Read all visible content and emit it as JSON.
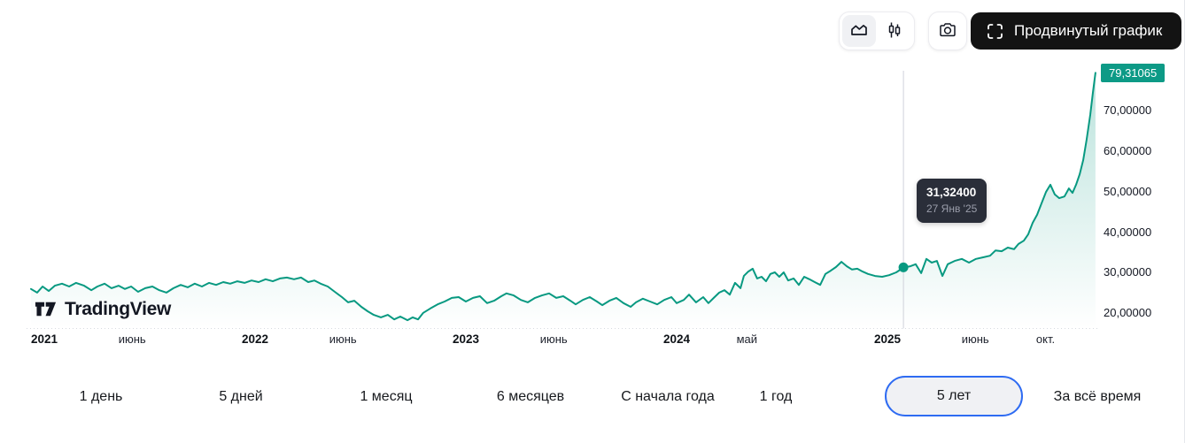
{
  "toolbar": {
    "advanced_label": "Продвинутый график",
    "icons": [
      "area-chart-icon",
      "candlestick-icon",
      "camera-icon",
      "fullscreen-brackets-icon"
    ]
  },
  "logo": {
    "text": "TradingView"
  },
  "tooltip": {
    "price": "31,32400",
    "date": "27 Янв '25"
  },
  "range_buttons": [
    {
      "label": "1 день",
      "selected": false
    },
    {
      "label": "5 дней",
      "selected": false
    },
    {
      "label": "1 месяц",
      "selected": false
    },
    {
      "label": "6 месяцев",
      "selected": false
    },
    {
      "label": "С начала года",
      "selected": false
    },
    {
      "label": "1 год",
      "selected": false
    },
    {
      "label": "5 лет",
      "selected": true
    },
    {
      "label": "За всё время",
      "selected": false
    }
  ],
  "colors": {
    "line": "#089981",
    "badge": "#0d9a86",
    "tooltip_bg": "#2a2e39",
    "selected_border": "#2e6bf2",
    "crosshair": "#cfd2da",
    "advanced_bg": "#131313"
  },
  "chart_data": {
    "type": "area",
    "title": "",
    "xlabel": "",
    "ylabel": "",
    "ylim": [
      17,
      81
    ],
    "x_range_years": [
      "2021",
      "2025"
    ],
    "grid": false,
    "legend": "none",
    "last_label": "79,31065",
    "last_value": 79.31065,
    "y_ticks": [
      {
        "label": "70,00000",
        "value": 70
      },
      {
        "label": "60,00000",
        "value": 60
      },
      {
        "label": "50,00000",
        "value": 50
      },
      {
        "label": "40,00000",
        "value": 40
      },
      {
        "label": "30,00000",
        "value": 30
      },
      {
        "label": "20,00000",
        "value": 20
      }
    ],
    "x_ticks": [
      {
        "label": "2021",
        "t": 0.0,
        "bold": true
      },
      {
        "label": "июнь",
        "t": 0.417,
        "bold": false
      },
      {
        "label": "2022",
        "t": 1.0,
        "bold": true
      },
      {
        "label": "июнь",
        "t": 1.417,
        "bold": false
      },
      {
        "label": "2023",
        "t": 2.0,
        "bold": true
      },
      {
        "label": "июнь",
        "t": 2.417,
        "bold": false
      },
      {
        "label": "2024",
        "t": 3.0,
        "bold": true
      },
      {
        "label": "май",
        "t": 3.333,
        "bold": false
      },
      {
        "label": "2025",
        "t": 4.0,
        "bold": true
      },
      {
        "label": "июнь",
        "t": 4.417,
        "bold": false
      },
      {
        "label": "окт.",
        "t": 4.75,
        "bold": false
      }
    ],
    "crosshair": {
      "t": 4.076,
      "value": 31.324,
      "price_label": "31,32400",
      "date_label": "27 Янв '25"
    },
    "series": [
      {
        "name": "price",
        "points": [
          [
            -0.063,
            26.0
          ],
          [
            -0.034,
            25.1
          ],
          [
            -0.008,
            26.6
          ],
          [
            0.021,
            25.5
          ],
          [
            0.05,
            26.8
          ],
          [
            0.084,
            27.3
          ],
          [
            0.118,
            26.6
          ],
          [
            0.151,
            27.5
          ],
          [
            0.189,
            26.8
          ],
          [
            0.223,
            25.7
          ],
          [
            0.252,
            26.6
          ],
          [
            0.286,
            27.3
          ],
          [
            0.319,
            26.2
          ],
          [
            0.353,
            26.8
          ],
          [
            0.382,
            26.0
          ],
          [
            0.412,
            26.6
          ],
          [
            0.445,
            25.3
          ],
          [
            0.479,
            26.2
          ],
          [
            0.513,
            26.6
          ],
          [
            0.546,
            25.7
          ],
          [
            0.58,
            25.1
          ],
          [
            0.613,
            26.2
          ],
          [
            0.647,
            27.0
          ],
          [
            0.681,
            26.4
          ],
          [
            0.714,
            27.3
          ],
          [
            0.748,
            26.6
          ],
          [
            0.782,
            27.5
          ],
          [
            0.815,
            27.0
          ],
          [
            0.849,
            27.7
          ],
          [
            0.882,
            27.3
          ],
          [
            0.916,
            27.9
          ],
          [
            0.95,
            27.5
          ],
          [
            0.983,
            28.1
          ],
          [
            1.017,
            27.7
          ],
          [
            1.05,
            28.4
          ],
          [
            1.084,
            27.9
          ],
          [
            1.118,
            28.6
          ],
          [
            1.151,
            28.8
          ],
          [
            1.185,
            28.4
          ],
          [
            1.218,
            28.8
          ],
          [
            1.252,
            27.7
          ],
          [
            1.282,
            28.1
          ],
          [
            1.311,
            27.3
          ],
          [
            1.345,
            26.6
          ],
          [
            1.378,
            25.3
          ],
          [
            1.412,
            24.0
          ],
          [
            1.441,
            22.7
          ],
          [
            1.471,
            23.1
          ],
          [
            1.504,
            21.6
          ],
          [
            1.534,
            20.5
          ],
          [
            1.563,
            19.6
          ],
          [
            1.597,
            19.0
          ],
          [
            1.63,
            19.6
          ],
          [
            1.66,
            18.5
          ],
          [
            1.689,
            19.2
          ],
          [
            1.723,
            18.3
          ],
          [
            1.748,
            19.0
          ],
          [
            1.773,
            18.5
          ],
          [
            1.798,
            20.1
          ],
          [
            1.832,
            21.2
          ],
          [
            1.866,
            22.2
          ],
          [
            1.899,
            22.9
          ],
          [
            1.933,
            23.8
          ],
          [
            1.966,
            24.0
          ],
          [
            2.0,
            22.9
          ],
          [
            2.034,
            23.8
          ],
          [
            2.067,
            24.2
          ],
          [
            2.101,
            22.5
          ],
          [
            2.134,
            23.1
          ],
          [
            2.168,
            24.2
          ],
          [
            2.193,
            24.9
          ],
          [
            2.227,
            24.4
          ],
          [
            2.261,
            23.3
          ],
          [
            2.294,
            22.7
          ],
          [
            2.328,
            23.8
          ],
          [
            2.361,
            24.4
          ],
          [
            2.395,
            24.9
          ],
          [
            2.429,
            23.8
          ],
          [
            2.462,
            24.2
          ],
          [
            2.496,
            23.1
          ],
          [
            2.521,
            22.2
          ],
          [
            2.555,
            23.3
          ],
          [
            2.588,
            24.0
          ],
          [
            2.622,
            22.9
          ],
          [
            2.647,
            22.0
          ],
          [
            2.681,
            23.1
          ],
          [
            2.714,
            23.8
          ],
          [
            2.748,
            22.5
          ],
          [
            2.782,
            21.6
          ],
          [
            2.807,
            22.7
          ],
          [
            2.84,
            23.6
          ],
          [
            2.874,
            22.9
          ],
          [
            2.908,
            22.2
          ],
          [
            2.941,
            23.3
          ],
          [
            2.975,
            24.0
          ],
          [
            3.0,
            22.5
          ],
          [
            3.034,
            23.3
          ],
          [
            3.059,
            24.6
          ],
          [
            3.092,
            22.7
          ],
          [
            3.126,
            24.0
          ],
          [
            3.151,
            22.5
          ],
          [
            3.176,
            23.8
          ],
          [
            3.202,
            25.1
          ],
          [
            3.227,
            25.7
          ],
          [
            3.252,
            24.6
          ],
          [
            3.277,
            27.5
          ],
          [
            3.303,
            26.2
          ],
          [
            3.319,
            29.2
          ],
          [
            3.34,
            30.3
          ],
          [
            3.361,
            31.0
          ],
          [
            3.382,
            28.6
          ],
          [
            3.403,
            29.0
          ],
          [
            3.424,
            27.9
          ],
          [
            3.445,
            29.7
          ],
          [
            3.466,
            30.1
          ],
          [
            3.487,
            29.0
          ],
          [
            3.508,
            30.1
          ],
          [
            3.529,
            28.1
          ],
          [
            3.555,
            28.6
          ],
          [
            3.58,
            27.0
          ],
          [
            3.605,
            29.0
          ],
          [
            3.63,
            28.4
          ],
          [
            3.655,
            27.7
          ],
          [
            3.681,
            27.0
          ],
          [
            3.706,
            29.7
          ],
          [
            3.731,
            30.5
          ],
          [
            3.756,
            31.4
          ],
          [
            3.782,
            32.7
          ],
          [
            3.807,
            31.6
          ],
          [
            3.832,
            30.8
          ],
          [
            3.857,
            31.0
          ],
          [
            3.882,
            30.3
          ],
          [
            3.908,
            29.7
          ],
          [
            3.941,
            29.2
          ],
          [
            3.975,
            29.0
          ],
          [
            4.008,
            29.4
          ],
          [
            4.042,
            30.1
          ],
          [
            4.076,
            31.3
          ],
          [
            4.109,
            31.6
          ],
          [
            4.134,
            32.1
          ],
          [
            4.16,
            29.9
          ],
          [
            4.185,
            33.4
          ],
          [
            4.21,
            32.5
          ],
          [
            4.235,
            32.9
          ],
          [
            4.261,
            29.2
          ],
          [
            4.286,
            32.1
          ],
          [
            4.319,
            32.9
          ],
          [
            4.353,
            33.4
          ],
          [
            4.387,
            32.5
          ],
          [
            4.42,
            33.4
          ],
          [
            4.454,
            33.8
          ],
          [
            4.487,
            34.2
          ],
          [
            4.513,
            35.5
          ],
          [
            4.542,
            35.3
          ],
          [
            4.571,
            36.2
          ],
          [
            4.601,
            35.8
          ],
          [
            4.622,
            37.1
          ],
          [
            4.647,
            37.9
          ],
          [
            4.668,
            39.5
          ],
          [
            4.689,
            42.3
          ],
          [
            4.71,
            44.3
          ],
          [
            4.731,
            47.1
          ],
          [
            4.752,
            49.9
          ],
          [
            4.773,
            51.7
          ],
          [
            4.794,
            49.3
          ],
          [
            4.815,
            48.4
          ],
          [
            4.84,
            48.8
          ],
          [
            4.861,
            50.8
          ],
          [
            4.878,
            49.7
          ],
          [
            4.895,
            51.7
          ],
          [
            4.912,
            54.3
          ],
          [
            4.929,
            57.8
          ],
          [
            4.945,
            62.8
          ],
          [
            4.962,
            68.9
          ],
          [
            4.975,
            74.4
          ],
          [
            4.987,
            79.3
          ]
        ]
      }
    ]
  }
}
